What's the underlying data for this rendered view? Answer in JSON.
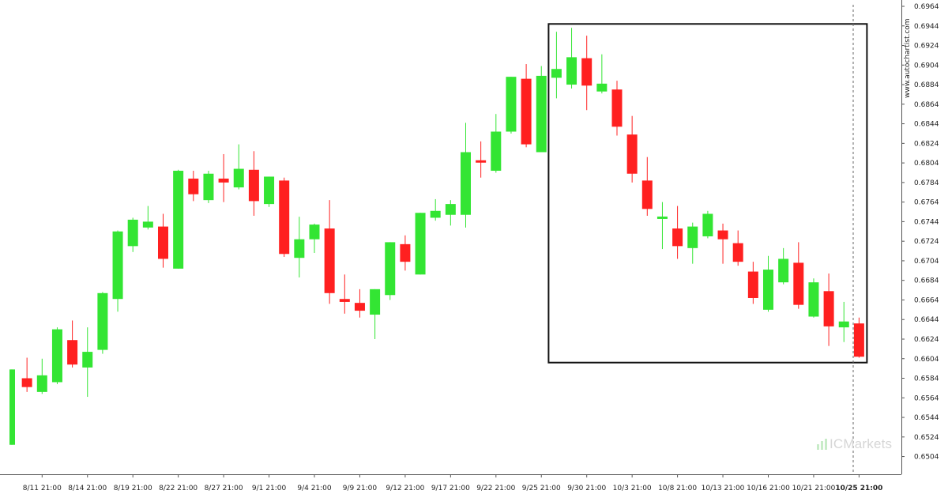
{
  "chart_data": {
    "type": "candlestick",
    "x_tick_labels": [
      "8/11 21:00",
      "8/14 21:00",
      "8/19 21:00",
      "8/22 21:00",
      "8/27 21:00",
      "9/1 21:00",
      "9/4 21:00",
      "9/9 21:00",
      "9/12 21:00",
      "9/17 21:00",
      "9/22 21:00",
      "9/25 21:00",
      "9/30 21:00",
      "10/3 21:00",
      "10/8 21:00",
      "10/13 21:00",
      "10/16 21:00",
      "10/21 21:00",
      "10/25 21:00"
    ],
    "y_tick_labels": [
      "0.6964",
      "0.6944",
      "0.6924",
      "0.6904",
      "0.6884",
      "0.6864",
      "0.6844",
      "0.6824",
      "0.6804",
      "0.6784",
      "0.6764",
      "0.6744",
      "0.6724",
      "0.6704",
      "0.6684",
      "0.6664",
      "0.6644",
      "0.6624",
      "0.6604",
      "0.6584",
      "0.6564",
      "0.6544",
      "0.6524",
      "0.6504"
    ],
    "ylim": [
      0.6498,
      0.6964
    ],
    "candles": [
      {
        "o": 0.6516,
        "h": 0.6593,
        "l": 0.6516,
        "c": 0.6593
      },
      {
        "o": 0.6584,
        "h": 0.6605,
        "l": 0.657,
        "c": 0.6575
      },
      {
        "o": 0.657,
        "h": 0.6604,
        "l": 0.6568,
        "c": 0.6587
      },
      {
        "o": 0.658,
        "h": 0.6636,
        "l": 0.6578,
        "c": 0.6634
      },
      {
        "o": 0.6623,
        "h": 0.6643,
        "l": 0.6595,
        "c": 0.6598
      },
      {
        "o": 0.6595,
        "h": 0.6636,
        "l": 0.6565,
        "c": 0.6611
      },
      {
        "o": 0.6613,
        "h": 0.6672,
        "l": 0.6609,
        "c": 0.6671
      },
      {
        "o": 0.6665,
        "h": 0.6735,
        "l": 0.6652,
        "c": 0.6734
      },
      {
        "o": 0.6719,
        "h": 0.6748,
        "l": 0.6713,
        "c": 0.6746
      },
      {
        "o": 0.6738,
        "h": 0.676,
        "l": 0.6736,
        "c": 0.6744
      },
      {
        "o": 0.6739,
        "h": 0.6752,
        "l": 0.6697,
        "c": 0.6706
      },
      {
        "o": 0.6696,
        "h": 0.6797,
        "l": 0.6696,
        "c": 0.6796
      },
      {
        "o": 0.6788,
        "h": 0.6796,
        "l": 0.6765,
        "c": 0.6772
      },
      {
        "o": 0.6766,
        "h": 0.6796,
        "l": 0.6763,
        "c": 0.6793
      },
      {
        "o": 0.6788,
        "h": 0.6813,
        "l": 0.6764,
        "c": 0.6784
      },
      {
        "o": 0.6779,
        "h": 0.6823,
        "l": 0.6777,
        "c": 0.6798
      },
      {
        "o": 0.6797,
        "h": 0.6816,
        "l": 0.675,
        "c": 0.6765
      },
      {
        "o": 0.6762,
        "h": 0.679,
        "l": 0.6759,
        "c": 0.679
      },
      {
        "o": 0.6786,
        "h": 0.6789,
        "l": 0.6708,
        "c": 0.6711
      },
      {
        "o": 0.6707,
        "h": 0.6749,
        "l": 0.6687,
        "c": 0.6726
      },
      {
        "o": 0.6726,
        "h": 0.6742,
        "l": 0.6712,
        "c": 0.6741
      },
      {
        "o": 0.6737,
        "h": 0.6766,
        "l": 0.666,
        "c": 0.6671
      },
      {
        "o": 0.6665,
        "h": 0.669,
        "l": 0.665,
        "c": 0.6662
      },
      {
        "o": 0.6661,
        "h": 0.6675,
        "l": 0.6646,
        "c": 0.6653
      },
      {
        "o": 0.6649,
        "h": 0.6675,
        "l": 0.6624,
        "c": 0.6675
      },
      {
        "o": 0.6669,
        "h": 0.6723,
        "l": 0.6664,
        "c": 0.6723
      },
      {
        "o": 0.6721,
        "h": 0.673,
        "l": 0.6694,
        "c": 0.6703
      },
      {
        "o": 0.669,
        "h": 0.6753,
        "l": 0.669,
        "c": 0.6753
      },
      {
        "o": 0.6748,
        "h": 0.6767,
        "l": 0.6745,
        "c": 0.6755
      },
      {
        "o": 0.6751,
        "h": 0.6766,
        "l": 0.674,
        "c": 0.6762
      },
      {
        "o": 0.6751,
        "h": 0.6845,
        "l": 0.6738,
        "c": 0.6815
      },
      {
        "o": 0.6806,
        "h": 0.6826,
        "l": 0.6789,
        "c": 0.6805
      },
      {
        "o": 0.6796,
        "h": 0.6854,
        "l": 0.6794,
        "c": 0.6836
      },
      {
        "o": 0.6836,
        "h": 0.6892,
        "l": 0.6834,
        "c": 0.6892
      },
      {
        "o": 0.689,
        "h": 0.6905,
        "l": 0.682,
        "c": 0.6823
      },
      {
        "o": 0.6815,
        "h": 0.6903,
        "l": 0.6815,
        "c": 0.6893
      },
      {
        "o": 0.6891,
        "h": 0.6938,
        "l": 0.687,
        "c": 0.69
      },
      {
        "o": 0.6884,
        "h": 0.6942,
        "l": 0.688,
        "c": 0.6912
      },
      {
        "o": 0.6911,
        "h": 0.6934,
        "l": 0.6858,
        "c": 0.6883
      },
      {
        "o": 0.6877,
        "h": 0.6915,
        "l": 0.6875,
        "c": 0.6885
      },
      {
        "o": 0.6879,
        "h": 0.6888,
        "l": 0.6832,
        "c": 0.6841
      },
      {
        "o": 0.6833,
        "h": 0.6852,
        "l": 0.6784,
        "c": 0.6793
      },
      {
        "o": 0.6786,
        "h": 0.681,
        "l": 0.675,
        "c": 0.6757
      },
      {
        "o": 0.6748,
        "h": 0.6764,
        "l": 0.6716,
        "c": 0.6748
      },
      {
        "o": 0.6737,
        "h": 0.676,
        "l": 0.6706,
        "c": 0.6719
      },
      {
        "o": 0.6717,
        "h": 0.6743,
        "l": 0.6701,
        "c": 0.6739
      },
      {
        "o": 0.6729,
        "h": 0.6755,
        "l": 0.6727,
        "c": 0.6752
      },
      {
        "o": 0.6735,
        "h": 0.6742,
        "l": 0.6701,
        "c": 0.6726
      },
      {
        "o": 0.6722,
        "h": 0.6735,
        "l": 0.6699,
        "c": 0.6703
      },
      {
        "o": 0.6693,
        "h": 0.6703,
        "l": 0.666,
        "c": 0.6666
      },
      {
        "o": 0.6654,
        "h": 0.6709,
        "l": 0.6652,
        "c": 0.6695
      },
      {
        "o": 0.6682,
        "h": 0.6717,
        "l": 0.668,
        "c": 0.6706
      },
      {
        "o": 0.6702,
        "h": 0.6723,
        "l": 0.6655,
        "c": 0.6659
      },
      {
        "o": 0.6647,
        "h": 0.6686,
        "l": 0.6646,
        "c": 0.6682
      },
      {
        "o": 0.6673,
        "h": 0.6691,
        "l": 0.6617,
        "c": 0.6637
      },
      {
        "o": 0.6636,
        "h": 0.6662,
        "l": 0.6621,
        "c": 0.6642
      },
      {
        "o": 0.664,
        "h": 0.6646,
        "l": 0.6605,
        "c": 0.6606
      }
    ],
    "pattern_box": {
      "from_price": 0.66,
      "to_price": 0.6946,
      "from_candle": 36,
      "to_candle": 56
    },
    "grid": false,
    "up_color": "#33e533",
    "down_color": "#ff2020"
  },
  "watermark": "www.autochartist.com",
  "brand": {
    "prefix": "IC",
    "suffix": "Markets"
  }
}
